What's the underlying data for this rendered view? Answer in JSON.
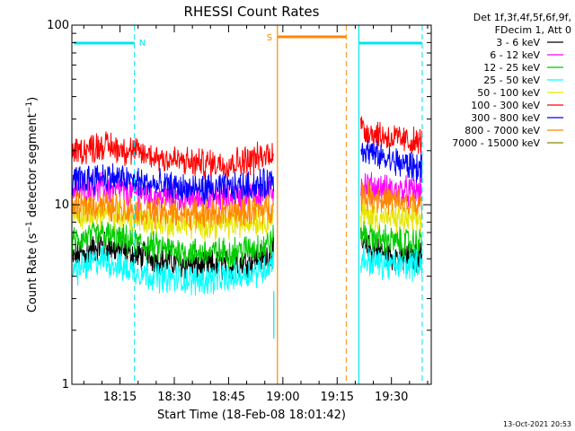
{
  "chart_data": {
    "type": "line",
    "title": "RHESSI Count Rates",
    "xlabel": "Start Time (18-Feb-08 18:01:42)",
    "ylabel_prefix": "Count Rate (s",
    "ylabel_sup": "−1",
    "ylabel_mid": " detector segment",
    "ylabel_suffix": ")",
    "y_scale": "log",
    "ylim": [
      1,
      100
    ],
    "xlim": [
      "18:01:42",
      "19:41:00"
    ],
    "x_tick_labels": [
      "18:15",
      "18:30",
      "18:45",
      "19:00",
      "19:15",
      "19:30"
    ],
    "y_tick_labels": [
      "1",
      "10",
      "100"
    ],
    "grid": false,
    "legend_position": "top-right outside",
    "legend_header": [
      "Det 1f,3f,4f,5f,6f,9f,",
      "FDecim 1, Att 0"
    ],
    "series": [
      {
        "name": "3 - 6 keV",
        "color": "#000000",
        "segments": [
          {
            "x": [
              "18:01:42",
              "18:10",
              "18:15",
              "18:25",
              "18:35",
              "18:45",
              "18:55",
              "18:57:30"
            ],
            "y": [
              5.0,
              6.0,
              5.5,
              5.0,
              4.6,
              4.6,
              5.1,
              5.5
            ]
          },
          {
            "x": [
              "19:21:30",
              "19:25",
              "19:30",
              "19:35",
              "19:38:30"
            ],
            "y": [
              6.0,
              5.6,
              5.2,
              5.0,
              5.2
            ]
          }
        ]
      },
      {
        "name": "6 - 12 keV",
        "color": "#ff00ff",
        "segments": [
          {
            "x": [
              "18:01:42",
              "18:10",
              "18:15",
              "18:25",
              "18:35",
              "18:45",
              "18:55",
              "18:57:30"
            ],
            "y": [
              12.0,
              12.6,
              12.0,
              11.0,
              10.8,
              10.9,
              11.6,
              12.2
            ]
          },
          {
            "x": [
              "19:21:30",
              "19:25",
              "19:30",
              "19:35",
              "19:38:30"
            ],
            "y": [
              13.0,
              12.4,
              12.0,
              11.8,
              12.0
            ]
          }
        ]
      },
      {
        "name": "12 - 25 keV",
        "color": "#00cc00",
        "segments": [
          {
            "x": [
              "18:01:42",
              "18:10",
              "18:15",
              "18:25",
              "18:35",
              "18:45",
              "18:55",
              "18:57:30"
            ],
            "y": [
              6.2,
              6.9,
              6.4,
              5.8,
              5.4,
              5.4,
              5.9,
              6.4
            ]
          },
          {
            "x": [
              "19:21:30",
              "19:25",
              "19:30",
              "19:35",
              "19:38:30"
            ],
            "y": [
              7.0,
              6.6,
              6.3,
              6.1,
              6.2
            ]
          }
        ]
      },
      {
        "name": "25 - 50 keV",
        "color": "#00ffff",
        "segments": [
          {
            "x": [
              "18:01:42",
              "18:10",
              "18:15",
              "18:25",
              "18:35",
              "18:45",
              "18:55",
              "18:57:30"
            ],
            "y": [
              4.2,
              5.0,
              4.5,
              4.0,
              3.8,
              3.9,
              4.4,
              4.9
            ]
          },
          {
            "x": [
              "19:21:30",
              "19:25",
              "19:30",
              "19:35",
              "19:38:30"
            ],
            "y": [
              5.0,
              4.8,
              4.6,
              4.6,
              4.8
            ]
          }
        ]
      },
      {
        "name": "50 - 100 keV",
        "color": "#e6e600",
        "segments": [
          {
            "x": [
              "18:01:42",
              "18:10",
              "18:15",
              "18:25",
              "18:35",
              "18:45",
              "18:55",
              "18:57:30"
            ],
            "y": [
              8.8,
              9.0,
              8.6,
              8.0,
              7.8,
              7.8,
              8.3,
              8.6
            ]
          },
          {
            "x": [
              "19:21:30",
              "19:25",
              "19:30",
              "19:35",
              "19:38:30"
            ],
            "y": [
              9.0,
              8.6,
              8.4,
              8.2,
              8.4
            ]
          }
        ]
      },
      {
        "name": "100 - 300 keV",
        "color": "#ff0000",
        "segments": [
          {
            "x": [
              "18:01:42",
              "18:10",
              "18:15",
              "18:25",
              "18:35",
              "18:45",
              "18:55",
              "18:57:30"
            ],
            "y": [
              19.5,
              21.5,
              20.5,
              18.5,
              17.0,
              17.0,
              18.5,
              20.5
            ]
          },
          {
            "x": [
              "19:21:30",
              "19:25",
              "19:30",
              "19:35",
              "19:38:30"
            ],
            "y": [
              27.0,
              25.0,
              23.5,
              22.5,
              22.0
            ]
          }
        ]
      },
      {
        "name": "300 - 800 keV",
        "color": "#0000ff",
        "segments": [
          {
            "x": [
              "18:01:42",
              "18:10",
              "18:15",
              "18:25",
              "18:35",
              "18:45",
              "18:55",
              "18:57:30"
            ],
            "y": [
              13.5,
              14.5,
              14.0,
              12.8,
              12.2,
              12.3,
              13.0,
              14.0
            ]
          },
          {
            "x": [
              "19:21:30",
              "19:25",
              "19:30",
              "19:35",
              "19:38:30"
            ],
            "y": [
              21.0,
              19.0,
              17.5,
              16.5,
              16.0
            ]
          }
        ]
      },
      {
        "name": "800 - 7000 keV",
        "color": "#ff8800",
        "segments": [
          {
            "x": [
              "18:01:42",
              "18:10",
              "18:15",
              "18:25",
              "18:35",
              "18:45",
              "18:55",
              "18:57:30"
            ],
            "y": [
              9.6,
              10.0,
              9.5,
              9.1,
              8.9,
              9.0,
              9.4,
              9.8
            ]
          },
          {
            "x": [
              "19:21:30",
              "19:25",
              "19:30",
              "19:35",
              "19:38:30"
            ],
            "y": [
              11.5,
              11.0,
              10.5,
              10.0,
              9.8
            ]
          }
        ]
      },
      {
        "name": "7000 - 15000 keV",
        "color": "#888800",
        "segments": []
      }
    ],
    "annotations": [
      {
        "text": "N",
        "color": "#00e5ee",
        "span": [
          "18:01:42",
          "18:19:00"
        ]
      },
      {
        "text": "S",
        "color": "#ff8800",
        "span": [
          "18:58:30",
          "19:17:30"
        ]
      },
      {
        "text": "",
        "color": "#00e5ee",
        "span": [
          "19:21:00",
          "19:38:30"
        ]
      }
    ]
  },
  "footer": {
    "timestamp": "13-Oct-2021 20:53"
  }
}
